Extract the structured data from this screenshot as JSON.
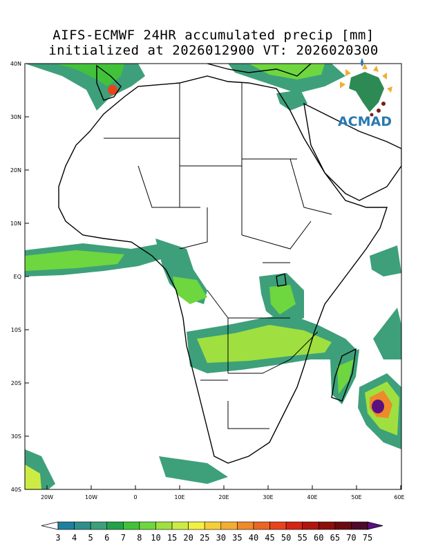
{
  "title": {
    "line1": "AIFS-ECMWF 24HR accumulated precip [mm]",
    "line2": "initialized at 2026012900 VT: 2026020300"
  },
  "logo": {
    "text": "ACMAD"
  },
  "axes": {
    "lat_ticks": [
      "40N",
      "30N",
      "20N",
      "10N",
      "EQ",
      "10S",
      "20S",
      "30S",
      "40S"
    ],
    "lon_ticks": [
      "20W",
      "10W",
      "0",
      "10E",
      "20E",
      "30E",
      "40E",
      "50E",
      "60E"
    ],
    "lon_range": [
      -25,
      60
    ],
    "lat_range": [
      -40,
      40
    ]
  },
  "colorbar": {
    "labels": [
      "3",
      "4",
      "5",
      "6",
      "7",
      "8",
      "10",
      "15",
      "20",
      "25",
      "30",
      "35",
      "40",
      "45",
      "50",
      "55",
      "60",
      "65",
      "70",
      "75"
    ],
    "colors": [
      "#1f7f9e",
      "#2f8f8a",
      "#3da07a",
      "#22a24a",
      "#42c23a",
      "#6ed63e",
      "#9fe040",
      "#ccec44",
      "#f2f043",
      "#f5cf3a",
      "#f2ad32",
      "#ee8a2a",
      "#ea6622",
      "#e8431a",
      "#d42414",
      "#b01510",
      "#8c0f0c",
      "#6a0a10",
      "#4e0a2a",
      "#5a1080"
    ]
  },
  "colors": {
    "coast": "#000000",
    "background": "#ffffff"
  }
}
